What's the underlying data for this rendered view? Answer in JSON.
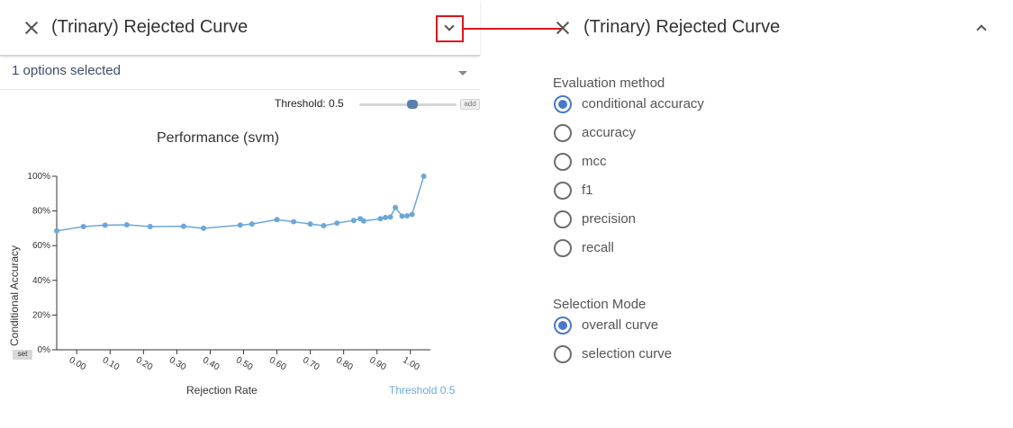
{
  "left_panel": {
    "title": "(Trinary) Rejected Curve",
    "select_value": "1 options selected",
    "threshold_label": "Threshold: 0.5",
    "threshold_value": 0.5,
    "add_label": "add",
    "set_label": "set",
    "threshold_link": "Threshold 0.5",
    "colors": {
      "series": "#6ba7d9",
      "accent": "#e0141e"
    }
  },
  "chart_data": {
    "type": "line",
    "title": "Performance (svm)",
    "xlabel": "Rejection Rate",
    "ylabel": "Conditional Accuracy",
    "xlim": [
      -0.06,
      1.06
    ],
    "ylim": [
      0,
      1
    ],
    "x_ticks": [
      "0.00",
      "0.10",
      "0.20",
      "0.30",
      "0.40",
      "0.50",
      "0.60",
      "0.70",
      "0.80",
      "0.90",
      "1.00"
    ],
    "y_ticks": [
      "0%",
      "20%",
      "40%",
      "60%",
      "80%",
      "100%"
    ],
    "x": [
      -0.06,
      0.02,
      0.085,
      0.15,
      0.22,
      0.32,
      0.38,
      0.49,
      0.525,
      0.6,
      0.65,
      0.7,
      0.74,
      0.78,
      0.83,
      0.85,
      0.86,
      0.91,
      0.925,
      0.94,
      0.955,
      0.975,
      0.99,
      1.005,
      1.04
    ],
    "y": [
      0.685,
      0.71,
      0.718,
      0.72,
      0.71,
      0.712,
      0.7,
      0.718,
      0.725,
      0.75,
      0.738,
      0.725,
      0.715,
      0.73,
      0.745,
      0.755,
      0.742,
      0.755,
      0.762,
      0.765,
      0.82,
      0.77,
      0.772,
      0.78,
      1.0
    ]
  },
  "right_panel": {
    "title": "(Trinary) Rejected Curve",
    "evaluation": {
      "label": "Evaluation method",
      "options": [
        "conditional accuracy",
        "accuracy",
        "mcc",
        "f1",
        "precision",
        "recall"
      ],
      "selected": "conditional accuracy"
    },
    "selection": {
      "label": "Selection Mode",
      "options": [
        "overall curve",
        "selection curve"
      ],
      "selected": "overall curve"
    }
  }
}
